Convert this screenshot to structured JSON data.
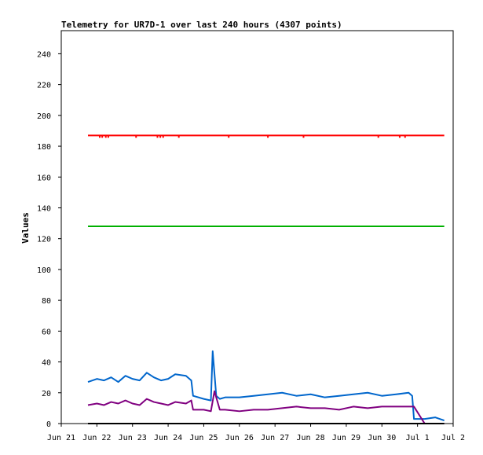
{
  "chart_data": {
    "type": "line",
    "title": "Telemetry for UR7D-1 over last 240 hours (4307 points)",
    "xlabel": "",
    "ylabel": "Values",
    "x_ticks": [
      "Jun 21",
      "Jun 22",
      "Jun 23",
      "Jun 24",
      "Jun 25",
      "Jun 26",
      "Jun 27",
      "Jun 28",
      "Jun 29",
      "Jun 30",
      "Jul 1",
      "Jul 2"
    ],
    "y_ticks": [
      "0",
      "20",
      "40",
      "60",
      "80",
      "100",
      "120",
      "140",
      "160",
      "180",
      "200",
      "220",
      "240"
    ],
    "xlim": [
      0,
      11
    ],
    "ylim": [
      0,
      255
    ],
    "grid": false,
    "legend": "none",
    "series": [
      {
        "color": "#ff0000",
        "x": [
          0.75,
          10.75
        ],
        "y": [
          187,
          187
        ],
        "dips": [
          1.08,
          1.15,
          1.25,
          1.32,
          2.1,
          2.7,
          2.78,
          2.86,
          3.3,
          4.7,
          5.8,
          6.8,
          8.9,
          9.5,
          9.65
        ]
      },
      {
        "color": "#00b000",
        "x": [
          0.75,
          10.75
        ],
        "y": [
          128,
          128
        ]
      },
      {
        "color": "#0066cc",
        "x": [
          0.75,
          1.0,
          1.2,
          1.4,
          1.6,
          1.8,
          2.0,
          2.2,
          2.4,
          2.6,
          2.8,
          3.0,
          3.2,
          3.5,
          3.65,
          3.7,
          4.0,
          4.2,
          4.25,
          4.35,
          4.45,
          4.6,
          5.0,
          5.4,
          5.8,
          6.2,
          6.6,
          7.0,
          7.4,
          7.8,
          8.2,
          8.6,
          9.0,
          9.4,
          9.75,
          9.85,
          9.9,
          10.2,
          10.5,
          10.75
        ],
        "y": [
          27,
          29,
          28,
          30,
          27,
          31,
          29,
          28,
          33,
          30,
          28,
          29,
          32,
          31,
          28,
          18,
          16,
          15,
          47,
          18,
          16,
          17,
          17,
          18,
          19,
          20,
          18,
          19,
          17,
          18,
          19,
          20,
          18,
          19,
          20,
          18,
          3,
          3,
          4,
          2
        ]
      },
      {
        "color": "#800080",
        "x": [
          0.75,
          1.0,
          1.2,
          1.4,
          1.6,
          1.8,
          2.0,
          2.2,
          2.4,
          2.6,
          2.8,
          3.0,
          3.2,
          3.5,
          3.65,
          3.7,
          4.0,
          4.2,
          4.3,
          4.45,
          4.6,
          5.0,
          5.4,
          5.8,
          6.2,
          6.6,
          7.0,
          7.4,
          7.8,
          8.2,
          8.6,
          9.0,
          9.4,
          9.75,
          9.85,
          9.9,
          10.2,
          10.5,
          10.75
        ],
        "y": [
          12,
          13,
          12,
          14,
          13,
          15,
          13,
          12,
          16,
          14,
          13,
          12,
          14,
          13,
          15,
          9,
          9,
          8,
          21,
          9,
          9,
          8,
          9,
          9,
          10,
          11,
          10,
          10,
          9,
          11,
          10,
          11,
          11,
          11,
          11,
          11,
          0,
          0,
          0
        ]
      },
      {
        "color": "#000000",
        "x": [
          0.75,
          10.75
        ],
        "y": [
          0,
          0
        ]
      }
    ]
  }
}
